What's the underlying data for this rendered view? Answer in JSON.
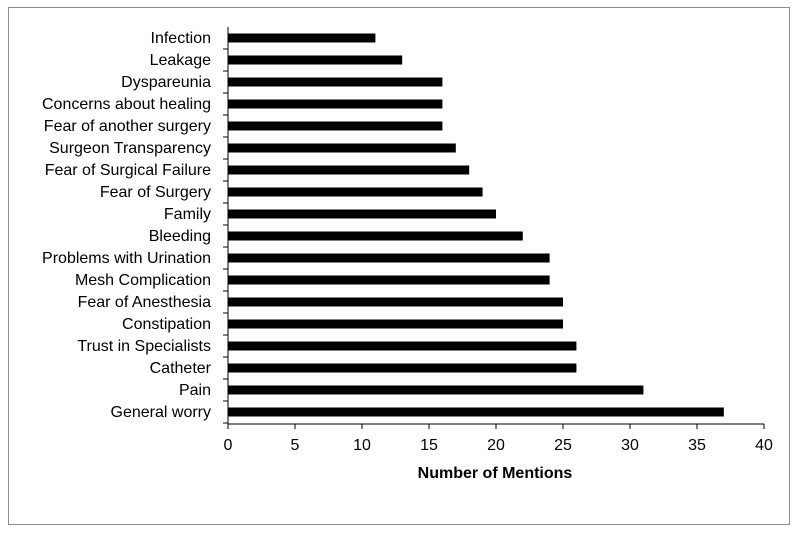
{
  "chart_data": {
    "type": "bar",
    "orientation": "horizontal",
    "title": "",
    "xlabel": "Number of Mentions",
    "ylabel": "",
    "xlim": [
      0,
      40
    ],
    "x_ticks": [
      0,
      5,
      10,
      15,
      20,
      25,
      30,
      35,
      40
    ],
    "grid": false,
    "legend": "none",
    "bar_color": "#000000",
    "categories": [
      "Infection",
      "Leakage",
      "Dyspareunia",
      "Concerns about healing",
      "Fear of another surgery",
      "Surgeon Transparency",
      "Fear of Surgical Failure",
      "Fear of Surgery",
      "Family",
      "Bleeding",
      "Problems with Urination",
      "Mesh Complication",
      "Fear of Anesthesia",
      "Constipation",
      "Trust in Specialists",
      "Catheter",
      "Pain",
      "General worry"
    ],
    "values": [
      11,
      13,
      16,
      16,
      16,
      17,
      18,
      19,
      20,
      22,
      24,
      24,
      25,
      25,
      26,
      26,
      31,
      37
    ]
  }
}
